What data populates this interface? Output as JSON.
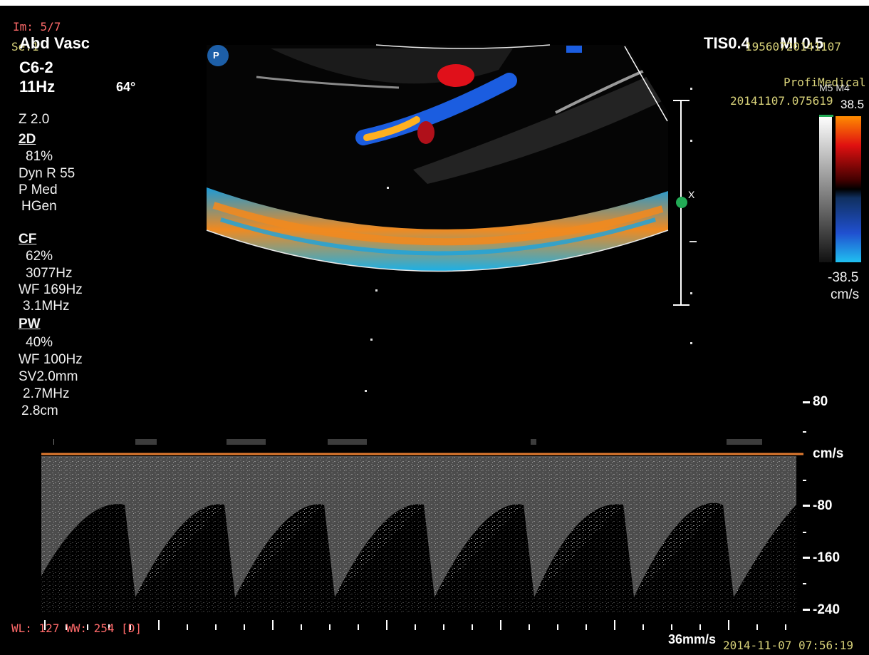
{
  "header": {
    "image_index": "Im: 5/7",
    "series": "Se:1",
    "exam": "Abd Vasc",
    "probe": "C6-2",
    "frame_rate": "11Hz",
    "angle": "64°",
    "thermal": "TIS0.4",
    "mechanical": "MI 0.5",
    "patient_id": "19560720141107",
    "institution": "ProfiMedical",
    "study_id": "20141107.075619",
    "preset": "M5 M4"
  },
  "params": {
    "zoom": "Z 2.0",
    "mode_2d": "2D",
    "gain_2d": "81%",
    "dyn_range": "Dyn R 55",
    "power": "P Med",
    "harmonic": "HGen",
    "mode_cf": "CF",
    "gain_cf": "62%",
    "prf_cf": "3077Hz",
    "wf_cf": "WF 169Hz",
    "freq_cf": "3.1MHz",
    "mode_pw": "PW",
    "gain_pw": "40%",
    "wf_pw": "WF 100Hz",
    "sample_volume": "SV2.0mm",
    "freq_pw": "2.7MHz",
    "depth_pw": "2.8cm"
  },
  "color_bar": {
    "top_value": "38.5",
    "bottom_value": "-38.5",
    "unit": "cm/s",
    "colors": [
      "#ff8c00",
      "#e01010",
      "#400000",
      "#000000",
      "#103060",
      "#2050d0",
      "#20c0f0"
    ]
  },
  "spectral_scale": {
    "labels": [
      "80",
      "cm/s",
      "-80",
      "-160",
      "-240"
    ],
    "baseline_color": "#e07a30"
  },
  "marker": {
    "label": "X",
    "color": "#22aa55"
  },
  "pw_logo": "P",
  "footer": {
    "window_level": "WL: 127 WW: 254 [D]",
    "sweep_speed": "36mm/s",
    "datetime": "2014-11-07 07:56:19"
  }
}
